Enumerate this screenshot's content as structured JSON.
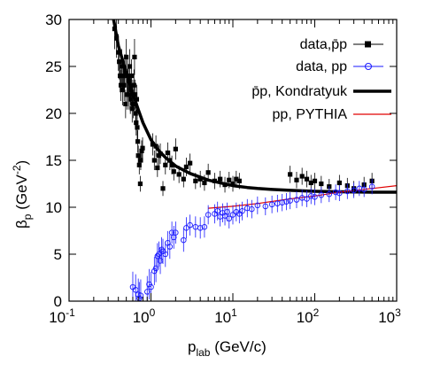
{
  "colors": {
    "pbar": "#000000",
    "pp": "#1a1aff",
    "kondratyuk": "#000000",
    "pythia": "#e00000"
  },
  "chart_data": {
    "type": "scatter",
    "title": "",
    "xlabel": {
      "base": "p",
      "sub": "lab",
      "rest": " (GeV/c)"
    },
    "ylabel": {
      "base": "β",
      "sub": "p",
      "rest": " (GeV",
      "sup": "-2",
      "close": ")"
    },
    "xscale": "log",
    "xlim": [
      0.1,
      1000
    ],
    "ylim": [
      0,
      30
    ],
    "grid": false,
    "legend_position": "top-right",
    "x_ticks": [
      {
        "value": 0.1,
        "base": "10",
        "exp": "-1"
      },
      {
        "value": 1,
        "base": "10",
        "exp": "0"
      },
      {
        "value": 10,
        "base": "10",
        "exp": "1"
      },
      {
        "value": 100,
        "base": "10",
        "exp": "2"
      },
      {
        "value": 1000,
        "base": "10",
        "exp": "3"
      }
    ],
    "y_ticks": [
      {
        "value": 0,
        "label": "0"
      },
      {
        "value": 5,
        "label": "5"
      },
      {
        "value": 10,
        "label": "10"
      },
      {
        "value": 15,
        "label": "15"
      },
      {
        "value": 20,
        "label": "20"
      },
      {
        "value": 25,
        "label": "25"
      },
      {
        "value": 30,
        "label": "30"
      }
    ],
    "series": [
      {
        "name": "data,p̄p",
        "kind": "points",
        "marker": "filled-square",
        "color": "#000000",
        "points": [
          [
            0.36,
            29
          ],
          [
            0.38,
            28
          ],
          [
            0.4,
            26.5
          ],
          [
            0.41,
            25.5
          ],
          [
            0.42,
            24
          ],
          [
            0.43,
            23
          ],
          [
            0.44,
            25
          ],
          [
            0.45,
            22.5
          ],
          [
            0.46,
            24
          ],
          [
            0.47,
            23
          ],
          [
            0.48,
            24.5
          ],
          [
            0.49,
            21
          ],
          [
            0.5,
            26
          ],
          [
            0.51,
            22
          ],
          [
            0.52,
            24
          ],
          [
            0.53,
            23.5
          ],
          [
            0.54,
            22
          ],
          [
            0.55,
            25
          ],
          [
            0.56,
            21.5
          ],
          [
            0.57,
            22.5
          ],
          [
            0.58,
            24
          ],
          [
            0.59,
            20.5
          ],
          [
            0.6,
            22
          ],
          [
            0.61,
            21
          ],
          [
            0.62,
            23
          ],
          [
            0.63,
            26
          ],
          [
            0.64,
            22
          ],
          [
            0.65,
            20
          ],
          [
            0.66,
            19
          ],
          [
            0.67,
            21.5
          ],
          [
            0.68,
            18.5
          ],
          [
            0.69,
            17
          ],
          [
            0.7,
            15.5
          ],
          [
            0.72,
            14.5
          ],
          [
            0.74,
            12.5
          ],
          [
            0.75,
            15
          ],
          [
            0.77,
            16
          ],
          [
            0.79,
            16.3
          ],
          [
            1.05,
            16.7
          ],
          [
            1.1,
            15
          ],
          [
            1.15,
            16.5
          ],
          [
            1.2,
            14.2
          ],
          [
            1.25,
            15.5
          ],
          [
            1.3,
            15.7
          ],
          [
            1.4,
            12
          ],
          [
            1.5,
            14.5
          ],
          [
            1.6,
            15.8
          ],
          [
            1.7,
            15
          ],
          [
            1.8,
            14.5
          ],
          [
            1.9,
            13.8
          ],
          [
            2.0,
            16.2
          ],
          [
            2.2,
            13.5
          ],
          [
            2.5,
            13
          ],
          [
            2.7,
            14.3
          ],
          [
            3.0,
            14.7
          ],
          [
            3.5,
            12.8
          ],
          [
            4.0,
            13
          ],
          [
            4.5,
            12.6
          ],
          [
            5.0,
            13.7
          ],
          [
            6.0,
            12.8
          ],
          [
            7.0,
            13
          ],
          [
            8.0,
            12.4
          ],
          [
            9.0,
            12.9
          ],
          [
            10,
            12.5
          ],
          [
            11,
            13
          ],
          [
            12,
            12.8
          ],
          [
            50,
            13.5
          ],
          [
            60,
            12.9
          ],
          [
            70,
            13.3
          ],
          [
            80,
            13
          ],
          [
            90,
            12.6
          ],
          [
            100,
            12.8
          ],
          [
            120,
            12.5
          ],
          [
            150,
            12.2
          ],
          [
            200,
            12.6
          ],
          [
            250,
            12.3
          ],
          [
            300,
            12
          ],
          [
            400,
            12.4
          ],
          [
            500,
            12.8
          ]
        ]
      },
      {
        "name": "data, pp",
        "kind": "points",
        "marker": "open-circle",
        "color": "#1a1aff",
        "points": [
          [
            0.6,
            1.5
          ],
          [
            0.65,
            1.2
          ],
          [
            0.7,
            0.7
          ],
          [
            0.72,
            0.3
          ],
          [
            0.75,
            0.6
          ],
          [
            0.9,
            1
          ],
          [
            0.95,
            1.8
          ],
          [
            1.0,
            1.5
          ],
          [
            1.1,
            3.2
          ],
          [
            1.15,
            3.5
          ],
          [
            1.2,
            4.8
          ],
          [
            1.25,
            5
          ],
          [
            1.3,
            4.3
          ],
          [
            1.35,
            5.5
          ],
          [
            1.4,
            5.3
          ],
          [
            1.5,
            5
          ],
          [
            1.6,
            6.2
          ],
          [
            1.7,
            5.8
          ],
          [
            1.8,
            7.3
          ],
          [
            1.9,
            6.8
          ],
          [
            2.0,
            7.3
          ],
          [
            2.5,
            6.5
          ],
          [
            2.7,
            7.8
          ],
          [
            3.0,
            8.1
          ],
          [
            3.5,
            7.9
          ],
          [
            4.0,
            7.8
          ],
          [
            4.5,
            7.9
          ],
          [
            5.0,
            9.2
          ],
          [
            6.0,
            9.3
          ],
          [
            6.5,
            9.6
          ],
          [
            7.0,
            9
          ],
          [
            7.5,
            9.4
          ],
          [
            8.0,
            9.1
          ],
          [
            8.5,
            9.5
          ],
          [
            9.0,
            8.8
          ],
          [
            10,
            9.2
          ],
          [
            11,
            9.5
          ],
          [
            12,
            9.3
          ],
          [
            13,
            9.6
          ],
          [
            15,
            9.9
          ],
          [
            17,
            9.8
          ],
          [
            20,
            10.2
          ],
          [
            25,
            10.1
          ],
          [
            30,
            10.3
          ],
          [
            35,
            10.4
          ],
          [
            40,
            10.5
          ],
          [
            45,
            10.6
          ],
          [
            50,
            10.7
          ],
          [
            60,
            10.8
          ],
          [
            70,
            11
          ],
          [
            80,
            10.9
          ],
          [
            90,
            11.2
          ],
          [
            100,
            11.1
          ],
          [
            120,
            11.3
          ],
          [
            150,
            11.4
          ],
          [
            180,
            11.6
          ],
          [
            200,
            11.5
          ],
          [
            250,
            11.7
          ],
          [
            300,
            11.8
          ],
          [
            350,
            12
          ],
          [
            400,
            11.9
          ],
          [
            500,
            12.2
          ]
        ]
      },
      {
        "name": "p̄p, Kondratyuk",
        "kind": "curve",
        "color": "#000000",
        "points": [
          [
            0.35,
            30
          ],
          [
            0.4,
            27.2
          ],
          [
            0.5,
            24.3
          ],
          [
            0.6,
            22.1
          ],
          [
            0.7,
            20.4
          ],
          [
            0.8,
            19
          ],
          [
            1.0,
            17.2
          ],
          [
            1.2,
            16.2
          ],
          [
            1.5,
            15.3
          ],
          [
            2,
            14.4
          ],
          [
            3,
            13.6
          ],
          [
            5,
            12.9
          ],
          [
            7,
            12.6
          ],
          [
            10,
            12.3
          ],
          [
            15,
            12.1
          ],
          [
            20,
            12
          ],
          [
            30,
            11.9
          ],
          [
            50,
            11.8
          ],
          [
            100,
            11.7
          ],
          [
            200,
            11.65
          ],
          [
            500,
            11.6
          ],
          [
            1000,
            11.6
          ]
        ]
      },
      {
        "name": "pp, PYTHIA",
        "kind": "curve",
        "color": "#e00000",
        "points": [
          [
            5,
            9.9
          ],
          [
            7,
            10
          ],
          [
            10,
            10.1
          ],
          [
            20,
            10.4
          ],
          [
            50,
            10.9
          ],
          [
            100,
            11.2
          ],
          [
            200,
            11.6
          ],
          [
            500,
            12
          ],
          [
            1000,
            12.3
          ]
        ]
      }
    ]
  }
}
